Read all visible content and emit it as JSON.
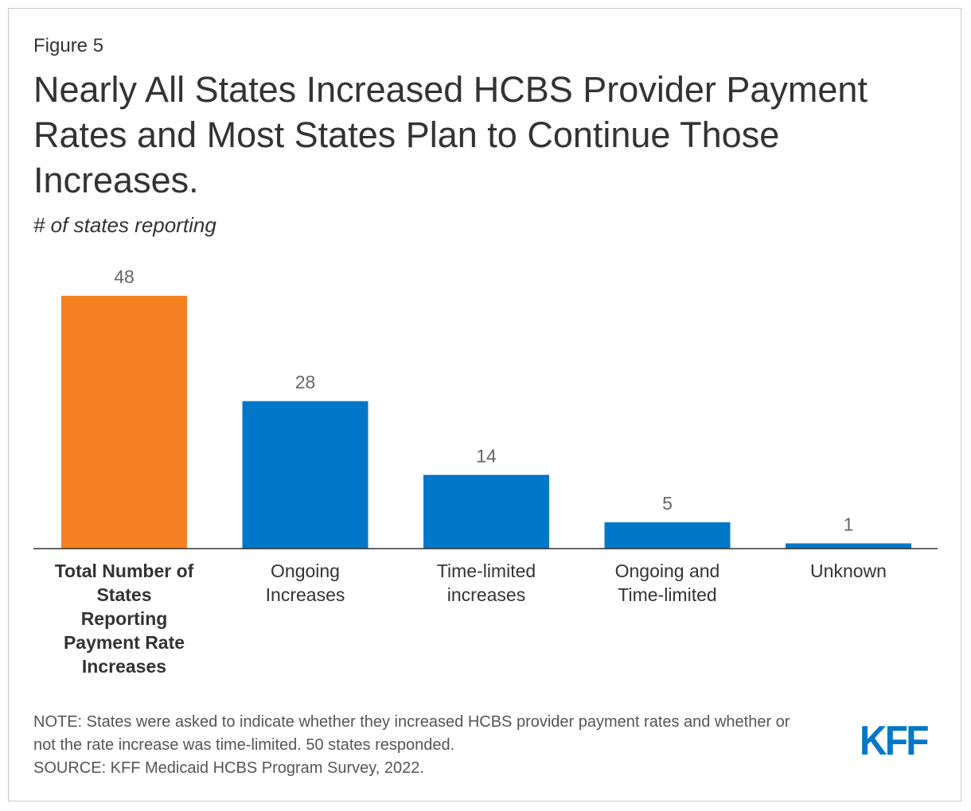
{
  "figure_label": "Figure 5",
  "title": "Nearly All States Increased HCBS Provider Payment Rates and Most States Plan to Continue Those Increases.",
  "subtitle": "# of states reporting",
  "chart_data": {
    "type": "bar",
    "categories": [
      "Total Number of States Reporting Payment Rate Increases",
      "Ongoing Increases",
      "Time-limited increases",
      "Ongoing and Time-limited",
      "Unknown"
    ],
    "category_lines": [
      [
        "Total Number of",
        "States",
        "Reporting",
        "Payment Rate",
        "Increases"
      ],
      [
        "Ongoing",
        "Increases"
      ],
      [
        "Time-limited",
        "increases"
      ],
      [
        "Ongoing and",
        "Time-limited"
      ],
      [
        "Unknown"
      ]
    ],
    "values": [
      48,
      28,
      14,
      5,
      1
    ],
    "data_labels": [
      "48",
      "28",
      "14",
      "5",
      "1"
    ],
    "colors": [
      "#f58220",
      "#0077c8",
      "#0077c8",
      "#0077c8",
      "#0077c8"
    ],
    "bold_categories": [
      true,
      false,
      false,
      false,
      false
    ],
    "ylim": [
      0,
      48
    ],
    "grid": false,
    "xlabel": "",
    "ylabel": ""
  },
  "notes": {
    "note": "NOTE: States were asked to indicate whether they increased HCBS provider payment rates and whether or not the rate increase was time-limited. 50 states responded.",
    "source": "SOURCE: KFF Medicaid HCBS Program Survey, 2022."
  },
  "logo": {
    "text": "KFF",
    "color": "#0077c8"
  },
  "colors": {
    "text": "#333333",
    "value_label": "#666666",
    "axis": "#333333"
  }
}
